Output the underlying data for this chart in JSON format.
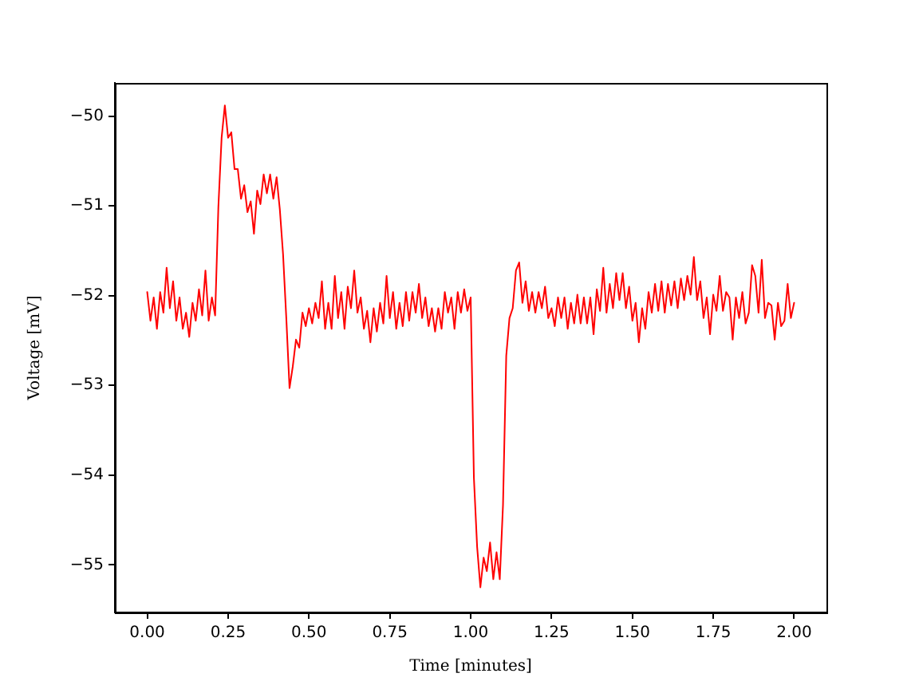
{
  "chart_data": {
    "type": "line",
    "xlabel": "Time [minutes]",
    "ylabel": "Voltage [mV]",
    "x": [
      0.0,
      0.01,
      0.02,
      0.03,
      0.04,
      0.05,
      0.06,
      0.07,
      0.08,
      0.09,
      0.1,
      0.11,
      0.12,
      0.13,
      0.14,
      0.15,
      0.16,
      0.17,
      0.18,
      0.19,
      0.2,
      0.21,
      0.22,
      0.23,
      0.24,
      0.25,
      0.26,
      0.27,
      0.28,
      0.29,
      0.3,
      0.31,
      0.32,
      0.33,
      0.34,
      0.35,
      0.36,
      0.37,
      0.38,
      0.39,
      0.4,
      0.41,
      0.42,
      0.43,
      0.44,
      0.45,
      0.46,
      0.47,
      0.48,
      0.49,
      0.5,
      0.51,
      0.52,
      0.53,
      0.54,
      0.55,
      0.56,
      0.57,
      0.58,
      0.59,
      0.6,
      0.61,
      0.62,
      0.63,
      0.64,
      0.65,
      0.66,
      0.67,
      0.68,
      0.69,
      0.7,
      0.71,
      0.72,
      0.73,
      0.74,
      0.75,
      0.76,
      0.77,
      0.78,
      0.79,
      0.8,
      0.81,
      0.82,
      0.83,
      0.84,
      0.85,
      0.86,
      0.87,
      0.88,
      0.89,
      0.9,
      0.91,
      0.92,
      0.93,
      0.94,
      0.95,
      0.96,
      0.97,
      0.98,
      0.99,
      1.0,
      1.01,
      1.02,
      1.03,
      1.04,
      1.05,
      1.06,
      1.07,
      1.08,
      1.09,
      1.1,
      1.11,
      1.12,
      1.13,
      1.14,
      1.15,
      1.16,
      1.17,
      1.18,
      1.19,
      1.2,
      1.21,
      1.22,
      1.23,
      1.24,
      1.25,
      1.26,
      1.27,
      1.28,
      1.29,
      1.3,
      1.31,
      1.32,
      1.33,
      1.34,
      1.35,
      1.36,
      1.37,
      1.38,
      1.39,
      1.4,
      1.41,
      1.42,
      1.43,
      1.44,
      1.45,
      1.46,
      1.47,
      1.48,
      1.49,
      1.5,
      1.51,
      1.52,
      1.53,
      1.54,
      1.55,
      1.56,
      1.57,
      1.58,
      1.59,
      1.6,
      1.61,
      1.62,
      1.63,
      1.64,
      1.65,
      1.66,
      1.67,
      1.68,
      1.69,
      1.7,
      1.71,
      1.72,
      1.73,
      1.74,
      1.75,
      1.76,
      1.77,
      1.78,
      1.79,
      1.8,
      1.81,
      1.82,
      1.83,
      1.84,
      1.85,
      1.86,
      1.87,
      1.88,
      1.89,
      1.9,
      1.91,
      1.92,
      1.93,
      1.94,
      1.95,
      1.96,
      1.97,
      1.98,
      1.99,
      2.0
    ],
    "series": [
      {
        "color": "#ff0000",
        "values": [
          -51.96,
          -52.28,
          -52.02,
          -52.37,
          -51.96,
          -52.19,
          -51.69,
          -52.14,
          -51.84,
          -52.28,
          -52.02,
          -52.37,
          -52.19,
          -52.46,
          -52.08,
          -52.28,
          -51.93,
          -52.22,
          -51.72,
          -52.28,
          -52.02,
          -52.22,
          -51.01,
          -50.24,
          -49.88,
          -50.24,
          -50.18,
          -50.59,
          -50.59,
          -50.92,
          -50.77,
          -51.07,
          -50.95,
          -51.31,
          -50.83,
          -50.98,
          -50.65,
          -50.86,
          -50.65,
          -50.92,
          -50.68,
          -51.04,
          -51.54,
          -52.25,
          -53.03,
          -52.79,
          -52.49,
          -52.58,
          -52.19,
          -52.34,
          -52.14,
          -52.31,
          -52.08,
          -52.25,
          -51.84,
          -52.37,
          -52.08,
          -52.37,
          -51.78,
          -52.25,
          -51.96,
          -52.37,
          -51.9,
          -52.14,
          -51.72,
          -52.19,
          -52.02,
          -52.37,
          -52.17,
          -52.52,
          -52.14,
          -52.4,
          -52.08,
          -52.31,
          -51.78,
          -52.25,
          -51.96,
          -52.37,
          -52.08,
          -52.34,
          -51.96,
          -52.28,
          -51.96,
          -52.19,
          -51.87,
          -52.25,
          -52.02,
          -52.34,
          -52.14,
          -52.4,
          -52.14,
          -52.37,
          -51.96,
          -52.19,
          -52.02,
          -52.37,
          -51.96,
          -52.19,
          -51.93,
          -52.17,
          -52.02,
          -54.03,
          -54.8,
          -55.25,
          -54.92,
          -55.07,
          -54.75,
          -55.16,
          -54.86,
          -55.16,
          -54.33,
          -52.67,
          -52.25,
          -52.14,
          -51.72,
          -51.63,
          -52.08,
          -51.84,
          -52.17,
          -51.96,
          -52.19,
          -51.96,
          -52.14,
          -51.9,
          -52.25,
          -52.14,
          -52.34,
          -52.02,
          -52.25,
          -52.02,
          -52.37,
          -52.08,
          -52.31,
          -51.99,
          -52.31,
          -52.02,
          -52.31,
          -52.02,
          -52.43,
          -51.93,
          -52.17,
          -51.69,
          -52.19,
          -51.87,
          -52.14,
          -51.75,
          -52.05,
          -51.75,
          -52.14,
          -51.9,
          -52.28,
          -52.08,
          -52.52,
          -52.14,
          -52.37,
          -51.96,
          -52.19,
          -51.87,
          -52.17,
          -51.84,
          -52.19,
          -51.87,
          -52.11,
          -51.84,
          -52.14,
          -51.81,
          -52.05,
          -51.78,
          -51.99,
          -51.57,
          -52.05,
          -51.84,
          -52.25,
          -52.02,
          -52.43,
          -51.99,
          -52.17,
          -51.78,
          -52.17,
          -51.96,
          -52.02,
          -52.49,
          -52.02,
          -52.25,
          -51.96,
          -52.31,
          -52.19,
          -51.66,
          -51.78,
          -52.19,
          -51.6,
          -52.25,
          -52.08,
          -52.11,
          -52.49,
          -52.08,
          -52.34,
          -52.28,
          -51.87,
          -52.25,
          -52.08
        ]
      }
    ],
    "xlim": [
      -0.1,
      2.1
    ],
    "ylim": [
      -55.53,
      -49.63
    ],
    "xticks": [
      {
        "value": 0,
        "label": "0.00"
      },
      {
        "value": 0.25,
        "label": "0.25"
      },
      {
        "value": 0.5,
        "label": "0.50"
      },
      {
        "value": 0.75,
        "label": "0.75"
      },
      {
        "value": 1,
        "label": "1.00"
      },
      {
        "value": 1.25,
        "label": "1.25"
      },
      {
        "value": 1.5,
        "label": "1.50"
      },
      {
        "value": 1.75,
        "label": "1.75"
      },
      {
        "value": 2,
        "label": "2.00"
      }
    ],
    "yticks": [
      {
        "value": -55,
        "label": "−55"
      },
      {
        "value": -54,
        "label": "−54"
      },
      {
        "value": -53,
        "label": "−53"
      },
      {
        "value": -52,
        "label": "−52"
      },
      {
        "value": -51,
        "label": "−51"
      },
      {
        "value": -50,
        "label": "−50"
      }
    ],
    "grid": false,
    "legend": false,
    "marker": "none",
    "line_style": "solid"
  }
}
